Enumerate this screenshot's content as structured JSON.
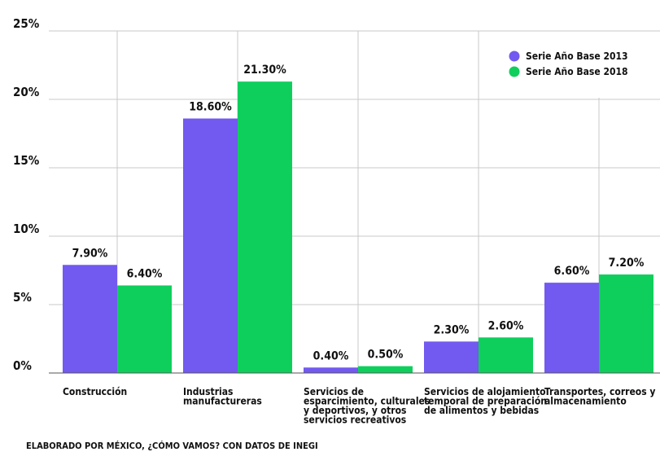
{
  "chart_data": {
    "type": "bar",
    "categories": [
      [
        "Construcción"
      ],
      [
        "Industrias",
        "manufactureras"
      ],
      [
        "Servicios de",
        "esparcimiento, culturales",
        "y deportivos, y otros",
        "servicios recreativos"
      ],
      [
        "Servicios de alojamiento",
        "temporal de preparación",
        "de alimentos y bebidas"
      ],
      [
        "Transportes, correos y",
        "almacenamiento"
      ]
    ],
    "series": [
      {
        "name": "Serie Año Base 2013",
        "color": "#7259f0",
        "values": [
          7.9,
          18.6,
          0.4,
          2.3,
          6.6
        ],
        "labels": [
          "7.90%",
          "18.60%",
          "0.40%",
          "2.30%",
          "6.60%"
        ]
      },
      {
        "name": "Serie Año Base 2018",
        "color": "#0fcf5c",
        "values": [
          6.4,
          21.3,
          0.5,
          2.6,
          7.2
        ],
        "labels": [
          "6.40%",
          "21.30%",
          "0.50%",
          "2.60%",
          "7.20%"
        ]
      }
    ],
    "yticks": [
      "0%",
      "5%",
      "10%",
      "15%",
      "20%",
      "25%"
    ],
    "ylim": [
      0,
      25
    ],
    "grid": true,
    "legend": "top-right"
  },
  "source_note": "ELABORADO POR MÉXICO, ¿CÓMO VAMOS? CON DATOS DE INEGI"
}
